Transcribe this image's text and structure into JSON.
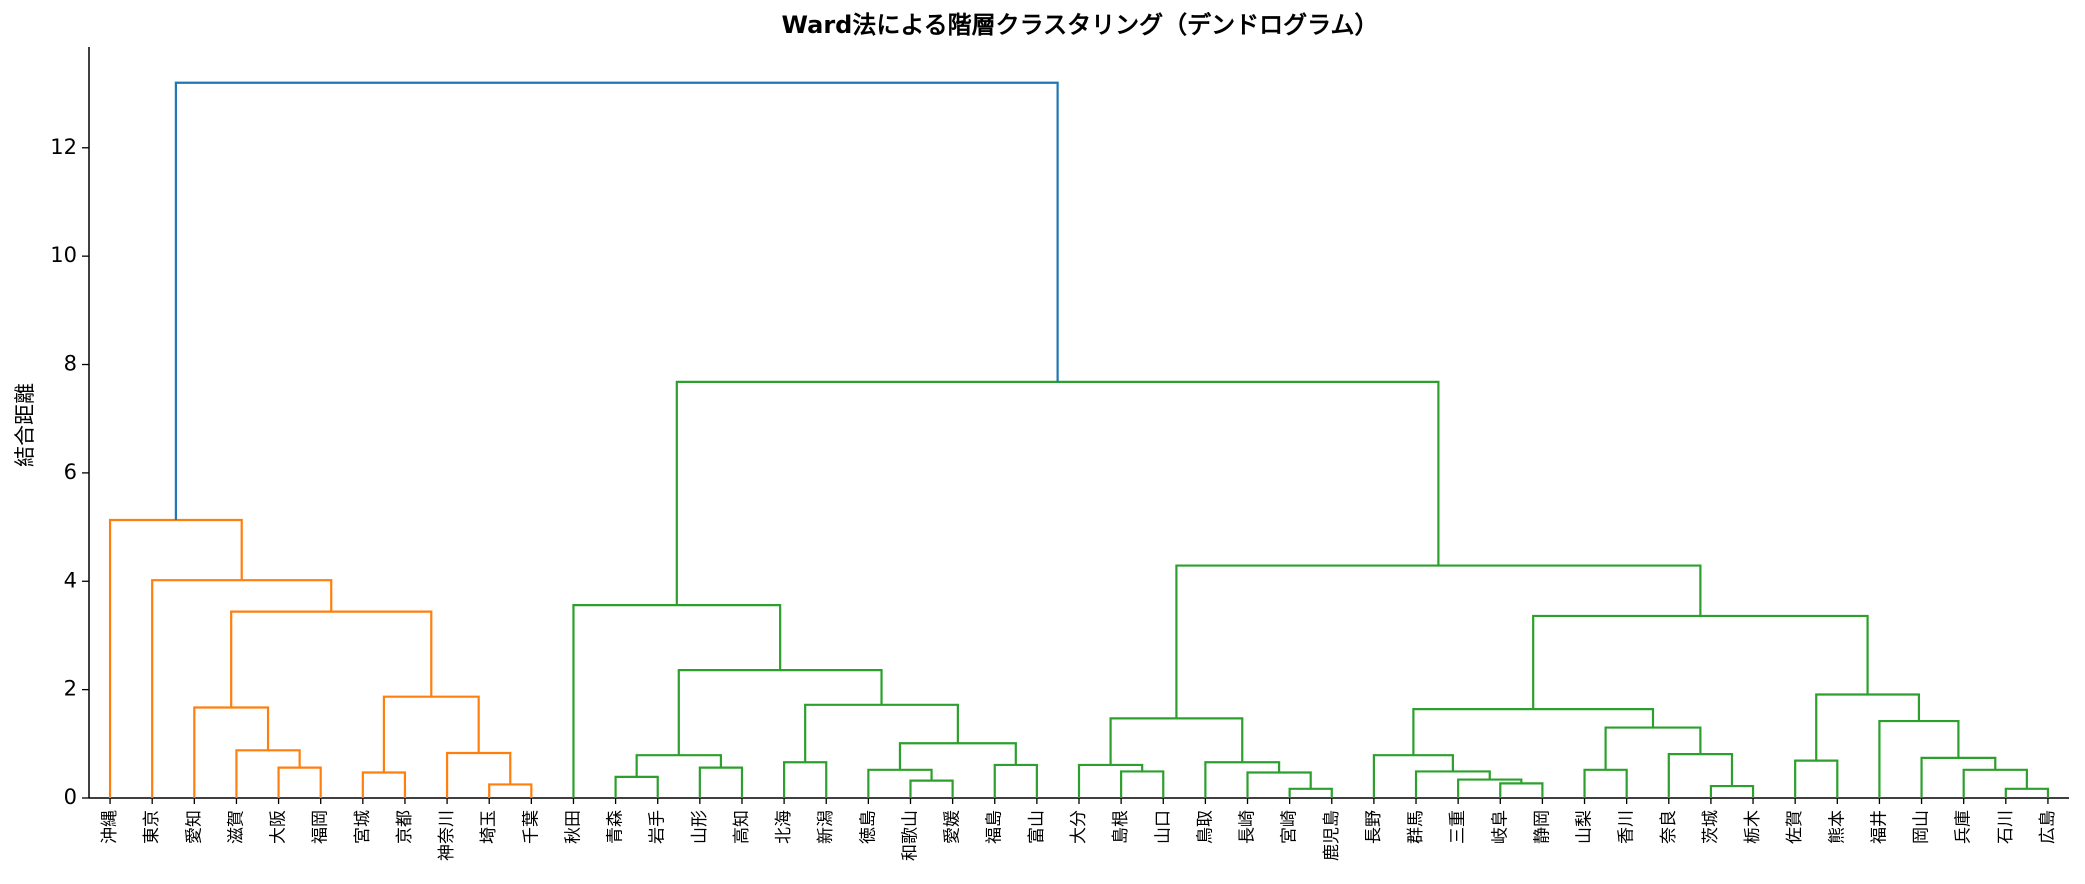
{
  "chart_data": {
    "type": "dendrogram",
    "title": "Ward法による階層クラスタリング（デンドログラム）",
    "ylabel": "結合距離",
    "leaves": [
      "沖縄",
      "東京",
      "愛知",
      "滋賀",
      "大阪",
      "福岡",
      "宮城",
      "京都",
      "神奈川",
      "埼玉",
      "千葉",
      "秋田",
      "青森",
      "岩手",
      "山形",
      "高知",
      "北海",
      "新潟",
      "徳島",
      "和歌山",
      "愛媛",
      "福島",
      "富山",
      "大分",
      "島根",
      "山口",
      "鳥取",
      "長崎",
      "宮崎",
      "鹿児島",
      "長野",
      "群馬",
      "三重",
      "岐阜",
      "静岡",
      "山梨",
      "香川",
      "奈良",
      "茨城",
      "栃木",
      "佐賀",
      "熊本",
      "福井",
      "岡山",
      "兵庫",
      "石川",
      "広島"
    ],
    "merges": [
      {
        "left": 9,
        "right": 10,
        "height": 0.25,
        "color": "#ff7f0e"
      },
      {
        "left": 8,
        "right": 47,
        "height": 0.83,
        "color": "#ff7f0e"
      },
      {
        "left": 6,
        "right": 7,
        "height": 0.47,
        "color": "#ff7f0e"
      },
      {
        "left": 49,
        "right": 48,
        "height": 1.87,
        "color": "#ff7f0e"
      },
      {
        "left": 4,
        "right": 5,
        "height": 0.56,
        "color": "#ff7f0e"
      },
      {
        "left": 3,
        "right": 51,
        "height": 0.88,
        "color": "#ff7f0e"
      },
      {
        "left": 2,
        "right": 52,
        "height": 1.67,
        "color": "#ff7f0e"
      },
      {
        "left": 53,
        "right": 50,
        "height": 3.44,
        "color": "#ff7f0e"
      },
      {
        "left": 1,
        "right": 54,
        "height": 4.02,
        "color": "#ff7f0e"
      },
      {
        "left": 0,
        "right": 55,
        "height": 5.13,
        "color": "#ff7f0e"
      },
      {
        "left": 12,
        "right": 13,
        "height": 0.39,
        "color": "#2ca02c"
      },
      {
        "left": 14,
        "right": 15,
        "height": 0.56,
        "color": "#2ca02c"
      },
      {
        "left": 57,
        "right": 58,
        "height": 0.79,
        "color": "#2ca02c"
      },
      {
        "left": 16,
        "right": 17,
        "height": 0.66,
        "color": "#2ca02c"
      },
      {
        "left": 19,
        "right": 20,
        "height": 0.32,
        "color": "#2ca02c"
      },
      {
        "left": 18,
        "right": 61,
        "height": 0.52,
        "color": "#2ca02c"
      },
      {
        "left": 21,
        "right": 22,
        "height": 0.61,
        "color": "#2ca02c"
      },
      {
        "left": 62,
        "right": 63,
        "height": 1.01,
        "color": "#2ca02c"
      },
      {
        "left": 60,
        "right": 64,
        "height": 1.72,
        "color": "#2ca02c"
      },
      {
        "left": 59,
        "right": 65,
        "height": 2.36,
        "color": "#2ca02c"
      },
      {
        "left": 11,
        "right": 66,
        "height": 3.56,
        "color": "#2ca02c"
      },
      {
        "left": 24,
        "right": 25,
        "height": 0.49,
        "color": "#2ca02c"
      },
      {
        "left": 23,
        "right": 68,
        "height": 0.61,
        "color": "#2ca02c"
      },
      {
        "left": 28,
        "right": 29,
        "height": 0.17,
        "color": "#2ca02c"
      },
      {
        "left": 27,
        "right": 70,
        "height": 0.47,
        "color": "#2ca02c"
      },
      {
        "left": 26,
        "right": 71,
        "height": 0.66,
        "color": "#2ca02c"
      },
      {
        "left": 69,
        "right": 72,
        "height": 1.47,
        "color": "#2ca02c"
      },
      {
        "left": 33,
        "right": 34,
        "height": 0.27,
        "color": "#2ca02c"
      },
      {
        "left": 32,
        "right": 74,
        "height": 0.34,
        "color": "#2ca02c"
      },
      {
        "left": 31,
        "right": 75,
        "height": 0.49,
        "color": "#2ca02c"
      },
      {
        "left": 30,
        "right": 76,
        "height": 0.79,
        "color": "#2ca02c"
      },
      {
        "left": 35,
        "right": 36,
        "height": 0.52,
        "color": "#2ca02c"
      },
      {
        "left": 38,
        "right": 39,
        "height": 0.22,
        "color": "#2ca02c"
      },
      {
        "left": 37,
        "right": 79,
        "height": 0.81,
        "color": "#2ca02c"
      },
      {
        "left": 78,
        "right": 80,
        "height": 1.3,
        "color": "#2ca02c"
      },
      {
        "left": 77,
        "right": 81,
        "height": 1.64,
        "color": "#2ca02c"
      },
      {
        "left": 40,
        "right": 41,
        "height": 0.69,
        "color": "#2ca02c"
      },
      {
        "left": 45,
        "right": 46,
        "height": 0.17,
        "color": "#2ca02c"
      },
      {
        "left": 44,
        "right": 84,
        "height": 0.52,
        "color": "#2ca02c"
      },
      {
        "left": 43,
        "right": 85,
        "height": 0.74,
        "color": "#2ca02c"
      },
      {
        "left": 42,
        "right": 86,
        "height": 1.42,
        "color": "#2ca02c"
      },
      {
        "left": 83,
        "right": 87,
        "height": 1.91,
        "color": "#2ca02c"
      },
      {
        "left": 82,
        "right": 88,
        "height": 3.36,
        "color": "#2ca02c"
      },
      {
        "left": 73,
        "right": 89,
        "height": 4.29,
        "color": "#2ca02c"
      },
      {
        "left": 67,
        "right": 90,
        "height": 7.68,
        "color": "#2ca02c"
      },
      {
        "left": 56,
        "right": 91,
        "height": 13.2,
        "color": "#1f77b4"
      }
    ],
    "ylim": [
      0,
      13.86
    ],
    "yticks": [
      0,
      2,
      4,
      6,
      8,
      10,
      12
    ]
  }
}
